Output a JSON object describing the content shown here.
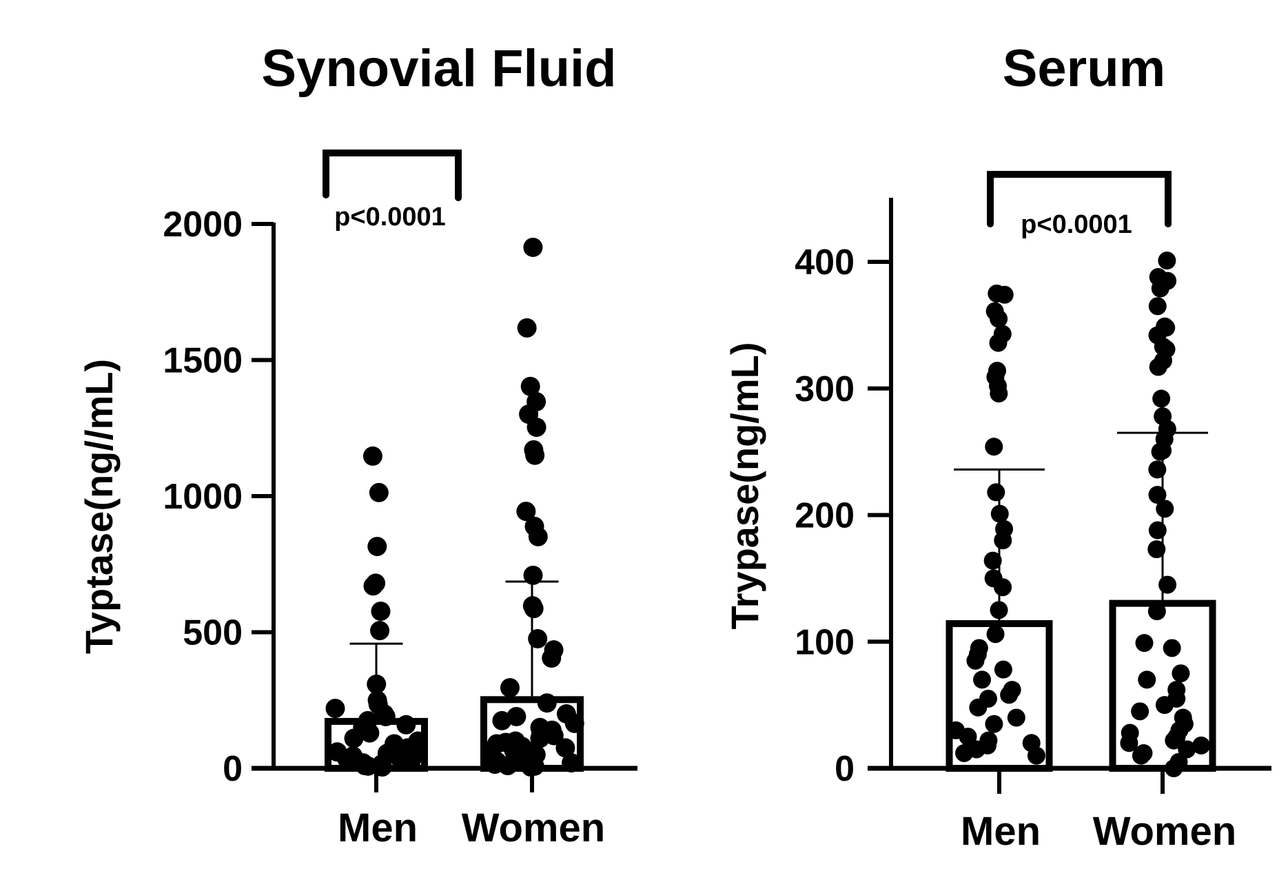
{
  "chart_data": [
    {
      "type": "bar",
      "title": "Synovial Fluid",
      "xlabel": "",
      "ylabel": "Typtase(ng//mL)",
      "ylim": [
        0,
        2000
      ],
      "yticks": [
        0,
        500,
        1000,
        1500,
        2000
      ],
      "ytick_labels": [
        "0",
        "500",
        "1000",
        "1500",
        "2000"
      ],
      "categories": [
        "Men",
        "Women"
      ],
      "values": [
        185,
        265
      ],
      "error_bar": "SD",
      "sd_upper": [
        458,
        686
      ],
      "grid": false,
      "annotation": {
        "text": "p<0.0001",
        "between": [
          "Men",
          "Women"
        ]
      },
      "points": {
        "Men": [
          1147,
          1013,
          815,
          680,
          670,
          577,
          506,
          309,
          250,
          235,
          220,
          200,
          190,
          175,
          160,
          150,
          130,
          110,
          100,
          90,
          75,
          65,
          60,
          55,
          50,
          45,
          40,
          35,
          30,
          25,
          20,
          15,
          10,
          8,
          5
        ],
        "Women": [
          1914,
          1618,
          1403,
          1347,
          1301,
          1253,
          1170,
          1150,
          944,
          889,
          851,
          709,
          597,
          587,
          476,
          435,
          405,
          296,
          240,
          200,
          190,
          175,
          165,
          150,
          140,
          130,
          120,
          110,
          100,
          95,
          90,
          80,
          75,
          70,
          65,
          60,
          55,
          50,
          45,
          40,
          35,
          30,
          25,
          20,
          15,
          10,
          8,
          5
        ]
      },
      "colors": {
        "ink": "#000000",
        "background": "#ffffff"
      }
    },
    {
      "type": "bar",
      "title": "Serum",
      "xlabel": "",
      "ylabel": "Trypase(ng/mL)",
      "ylim": [
        0,
        450
      ],
      "yticks": [
        0,
        100,
        200,
        300,
        400
      ],
      "ytick_labels": [
        "0",
        "100",
        "200",
        "300",
        "400"
      ],
      "categories": [
        "Men",
        "Women"
      ],
      "values": [
        117,
        133
      ],
      "error_bar": "SD",
      "sd_upper": [
        236,
        265
      ],
      "grid": false,
      "annotation": {
        "text": "p<0.0001",
        "between": [
          "Men",
          "Women"
        ]
      },
      "points": {
        "Men": [
          375,
          374,
          361,
          355,
          343,
          336,
          314,
          309,
          302,
          296,
          254,
          218,
          201,
          189,
          180,
          164,
          150,
          143,
          125,
          106,
          95,
          90,
          85,
          78,
          70,
          62,
          58,
          55,
          48,
          40,
          35,
          30,
          25,
          22,
          20,
          18,
          15,
          12,
          10
        ],
        "Women": [
          401,
          388,
          385,
          379,
          365,
          349,
          348,
          342,
          333,
          331,
          322,
          317,
          292,
          278,
          268,
          260,
          251,
          250,
          236,
          216,
          205,
          188,
          173,
          145,
          124,
          99,
          95,
          75,
          70,
          62,
          55,
          50,
          45,
          40,
          35,
          30,
          28,
          25,
          22,
          20,
          18,
          15,
          12,
          10,
          5,
          0
        ]
      },
      "colors": {
        "ink": "#000000",
        "background": "#ffffff"
      }
    }
  ]
}
